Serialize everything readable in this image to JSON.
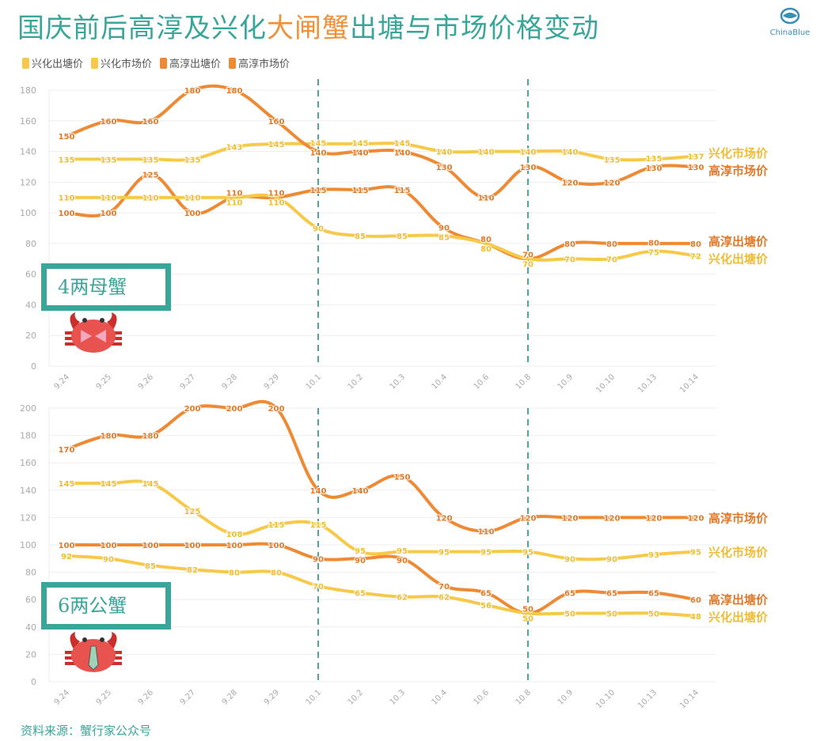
{
  "title": {
    "part1": "国庆前后高淳及兴化",
    "highlight": "大闸蟹",
    "part2": "出塘与市场价格变动"
  },
  "logo": {
    "text": "ChinaBlue"
  },
  "legend": [
    {
      "label": "兴化出塘价",
      "color": "#f7c948"
    },
    {
      "label": "兴化市场价",
      "color": "#f7c948"
    },
    {
      "label": "高淳出塘价",
      "color": "#ef8a34"
    },
    {
      "label": "高淳市场价",
      "color": "#ef8a34"
    }
  ],
  "source": "资料来源：蟹行家公众号",
  "chart_data": [
    {
      "type": "line",
      "panel_label": "4两母蟹",
      "categories": [
        "9.24",
        "9.25",
        "9.26",
        "9.27",
        "9.28",
        "9.29",
        "10.1",
        "10.2",
        "10.3",
        "10.4",
        "10.6",
        "10.8",
        "10.9",
        "10.10",
        "10.13",
        "10.14"
      ],
      "ylim": [
        0,
        180
      ],
      "yticks": [
        0,
        20,
        40,
        60,
        80,
        100,
        120,
        140,
        160,
        180
      ],
      "grid": true,
      "reference_lines": [
        "10.1",
        "10.8"
      ],
      "series": [
        {
          "name": "兴化市场价",
          "color": "#f7c948",
          "values": [
            135,
            135,
            135,
            135,
            143,
            145,
            145,
            145,
            145,
            140,
            140,
            140,
            140,
            135,
            135,
            137
          ]
        },
        {
          "name": "高淳市场价",
          "color": "#ef8a34",
          "values": [
            150,
            160,
            160,
            180,
            180,
            160,
            140,
            140,
            140,
            130,
            110,
            130,
            120,
            120,
            130,
            130
          ]
        },
        {
          "name": "高淳出塘价",
          "color": "#ef8a34",
          "values": [
            100,
            100,
            125,
            100,
            110,
            110,
            115,
            115,
            115,
            90,
            80,
            70,
            80,
            80,
            80,
            80
          ]
        },
        {
          "name": "兴化出塘价",
          "color": "#f7c948",
          "values": [
            110,
            110,
            110,
            110,
            110,
            110,
            90,
            85,
            85,
            85,
            80,
            70,
            70,
            70,
            75,
            72
          ]
        }
      ]
    },
    {
      "type": "line",
      "panel_label": "6两公蟹",
      "categories": [
        "9.24",
        "9.25",
        "9.26",
        "9.27",
        "9.28",
        "9.29",
        "10.1",
        "10.2",
        "10.3",
        "10.4",
        "10.6",
        "10.8",
        "10.9",
        "10.10",
        "10.13",
        "10.14"
      ],
      "ylim": [
        0,
        200
      ],
      "yticks": [
        0,
        20,
        40,
        60,
        80,
        100,
        120,
        140,
        160,
        180,
        200
      ],
      "grid": true,
      "reference_lines": [
        "10.1",
        "10.8"
      ],
      "series": [
        {
          "name": "高淳市场价",
          "color": "#ef8a34",
          "values": [
            170,
            180,
            180,
            200,
            200,
            200,
            140,
            140,
            150,
            120,
            110,
            120,
            120,
            120,
            120,
            120
          ]
        },
        {
          "name": "兴化市场价",
          "color": "#f7c948",
          "values": [
            145,
            145,
            145,
            125,
            108,
            115,
            115,
            95,
            95,
            95,
            95,
            95,
            90,
            90,
            93,
            95
          ]
        },
        {
          "name": "高淳出塘价",
          "color": "#ef8a34",
          "values": [
            100,
            100,
            100,
            100,
            100,
            100,
            90,
            90,
            90,
            70,
            65,
            50,
            65,
            65,
            65,
            60
          ]
        },
        {
          "name": "兴化出塘价",
          "color": "#f7c948",
          "values": [
            92,
            90,
            85,
            82,
            80,
            80,
            70,
            65,
            62,
            62,
            56,
            50,
            50,
            50,
            50,
            48
          ]
        }
      ]
    }
  ]
}
